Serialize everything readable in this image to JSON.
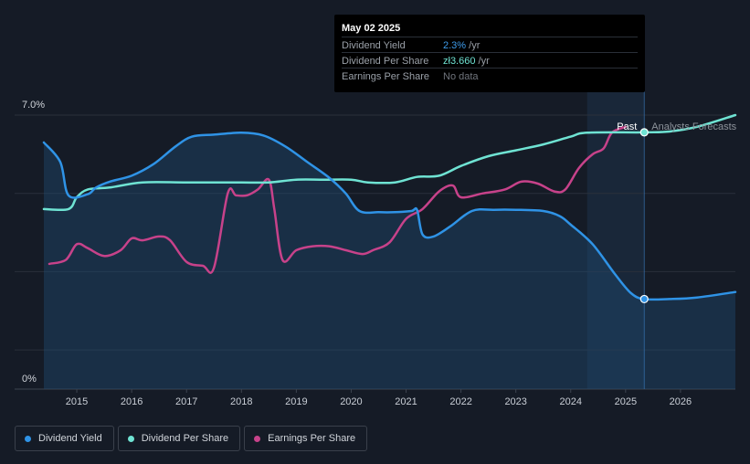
{
  "tooltip": {
    "date": "May 02 2025",
    "rows": [
      {
        "label": "Dividend Yield",
        "value": "2.3%",
        "unit": " /yr",
        "color": "#3d9be9"
      },
      {
        "label": "Dividend Per Share",
        "value": "zł3.660",
        "unit": " /yr",
        "color": "#6fe3d3"
      },
      {
        "label": "Earnings Per Share",
        "value": "No data",
        "unit": "",
        "color": "#70757d"
      }
    ]
  },
  "legend": [
    {
      "label": "Dividend Yield",
      "color": "#2f93e6"
    },
    {
      "label": "Dividend Per Share",
      "color": "#6fe3d3"
    },
    {
      "label": "Earnings Per Share",
      "color": "#c7428a"
    }
  ],
  "chart_data": {
    "type": "line",
    "title": "",
    "xlabel": "",
    "ylabel": "",
    "y_top_label": "7.0%",
    "y_bottom_label": "0%",
    "xlim": [
      2014.4,
      2027.0
    ],
    "ylim": [
      0,
      7.0
    ],
    "x_ticks": [
      "2015",
      "2016",
      "2017",
      "2018",
      "2019",
      "2020",
      "2021",
      "2022",
      "2023",
      "2024",
      "2025",
      "2026"
    ],
    "past_label": "Past",
    "forecast_label": "Analysts Forecasts",
    "past_region": [
      2024.3,
      2025.34
    ],
    "marker_x": 2025.34,
    "series": [
      {
        "name": "Dividend Yield",
        "color": "#2f93e6",
        "points": [
          [
            2014.4,
            6.3
          ],
          [
            2014.7,
            5.8
          ],
          [
            2014.85,
            4.95
          ],
          [
            2015.2,
            4.98
          ],
          [
            2015.35,
            5.15
          ],
          [
            2015.6,
            5.3
          ],
          [
            2016.0,
            5.45
          ],
          [
            2016.4,
            5.75
          ],
          [
            2016.8,
            6.2
          ],
          [
            2017.1,
            6.45
          ],
          [
            2017.5,
            6.5
          ],
          [
            2018.0,
            6.55
          ],
          [
            2018.4,
            6.48
          ],
          [
            2018.8,
            6.2
          ],
          [
            2019.2,
            5.8
          ],
          [
            2019.6,
            5.4
          ],
          [
            2019.9,
            5.0
          ],
          [
            2020.15,
            4.55
          ],
          [
            2020.5,
            4.52
          ],
          [
            2020.8,
            4.52
          ],
          [
            2021.1,
            4.55
          ],
          [
            2021.2,
            4.58
          ],
          [
            2021.3,
            3.95
          ],
          [
            2021.5,
            3.9
          ],
          [
            2021.8,
            4.15
          ],
          [
            2022.2,
            4.55
          ],
          [
            2022.6,
            4.58
          ],
          [
            2023.0,
            4.58
          ],
          [
            2023.5,
            4.55
          ],
          [
            2023.8,
            4.42
          ],
          [
            2024.0,
            4.2
          ],
          [
            2024.4,
            3.7
          ],
          [
            2024.8,
            2.95
          ],
          [
            2025.1,
            2.45
          ],
          [
            2025.34,
            2.3
          ],
          [
            2025.8,
            2.3
          ],
          [
            2026.3,
            2.34
          ],
          [
            2027.0,
            2.48
          ]
        ]
      },
      {
        "name": "Dividend Per Share",
        "color": "#6fe3d3",
        "points": [
          [
            2014.4,
            4.6
          ],
          [
            2014.85,
            4.6
          ],
          [
            2015.0,
            4.9
          ],
          [
            2015.2,
            5.1
          ],
          [
            2015.6,
            5.15
          ],
          [
            2016.2,
            5.28
          ],
          [
            2017.0,
            5.28
          ],
          [
            2018.0,
            5.28
          ],
          [
            2018.5,
            5.28
          ],
          [
            2019.0,
            5.35
          ],
          [
            2019.5,
            5.35
          ],
          [
            2020.0,
            5.35
          ],
          [
            2020.3,
            5.28
          ],
          [
            2020.8,
            5.28
          ],
          [
            2021.2,
            5.42
          ],
          [
            2021.6,
            5.45
          ],
          [
            2022.0,
            5.7
          ],
          [
            2022.5,
            5.95
          ],
          [
            2023.0,
            6.1
          ],
          [
            2023.5,
            6.25
          ],
          [
            2024.0,
            6.45
          ],
          [
            2024.3,
            6.55
          ],
          [
            2025.34,
            6.56
          ],
          [
            2025.8,
            6.58
          ],
          [
            2026.3,
            6.7
          ],
          [
            2027.0,
            7.0
          ]
        ]
      },
      {
        "name": "Earnings Per Share",
        "color": "#c7428a",
        "points": [
          [
            2014.5,
            3.2
          ],
          [
            2014.8,
            3.3
          ],
          [
            2015.0,
            3.7
          ],
          [
            2015.2,
            3.6
          ],
          [
            2015.5,
            3.4
          ],
          [
            2015.8,
            3.55
          ],
          [
            2016.0,
            3.85
          ],
          [
            2016.2,
            3.8
          ],
          [
            2016.5,
            3.9
          ],
          [
            2016.7,
            3.8
          ],
          [
            2017.0,
            3.25
          ],
          [
            2017.3,
            3.15
          ],
          [
            2017.5,
            3.1
          ],
          [
            2017.75,
            5.0
          ],
          [
            2017.9,
            4.95
          ],
          [
            2018.1,
            4.95
          ],
          [
            2018.3,
            5.1
          ],
          [
            2018.5,
            5.35
          ],
          [
            2018.6,
            4.6
          ],
          [
            2018.75,
            3.3
          ],
          [
            2019.0,
            3.55
          ],
          [
            2019.3,
            3.65
          ],
          [
            2019.6,
            3.65
          ],
          [
            2019.9,
            3.55
          ],
          [
            2020.2,
            3.45
          ],
          [
            2020.4,
            3.55
          ],
          [
            2020.7,
            3.75
          ],
          [
            2021.0,
            4.35
          ],
          [
            2021.3,
            4.6
          ],
          [
            2021.6,
            5.05
          ],
          [
            2021.85,
            5.2
          ],
          [
            2022.0,
            4.9
          ],
          [
            2022.4,
            5.0
          ],
          [
            2022.8,
            5.1
          ],
          [
            2023.1,
            5.3
          ],
          [
            2023.4,
            5.25
          ],
          [
            2023.7,
            5.05
          ],
          [
            2023.9,
            5.1
          ],
          [
            2024.15,
            5.65
          ],
          [
            2024.4,
            6.0
          ],
          [
            2024.6,
            6.15
          ],
          [
            2024.75,
            6.55
          ],
          [
            2025.0,
            6.7
          ]
        ]
      }
    ]
  }
}
